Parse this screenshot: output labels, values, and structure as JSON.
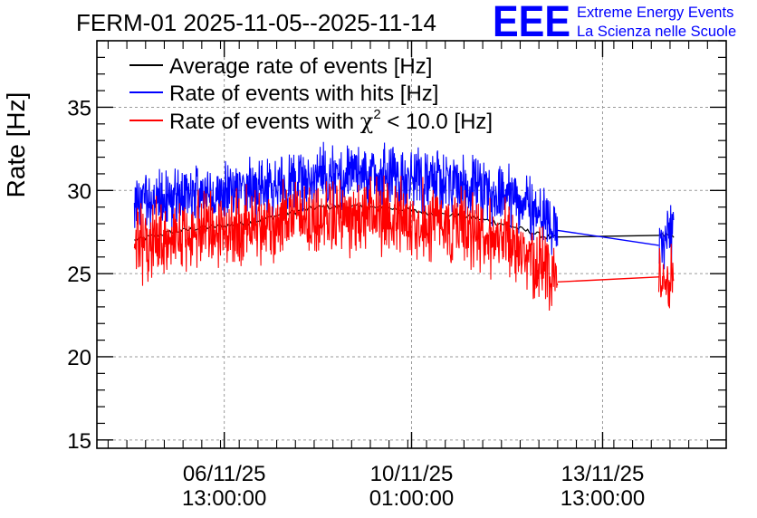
{
  "chart_data": {
    "type": "line",
    "title": "FERM-01 2025-11-05--2025-11-14",
    "ylabel": "Rate [Hz]",
    "xlabel": "",
    "ylim": [
      14.5,
      39
    ],
    "xlim": [
      0,
      16.8
    ],
    "grid": true,
    "legend_position": "top-left",
    "yticks": [
      15,
      20,
      25,
      30,
      35
    ],
    "xticks": [
      {
        "date": "06/11/25",
        "time": "13:00:00",
        "x": 3.4
      },
      {
        "date": "10/11/25",
        "time": "01:00:00",
        "x": 8.4
      },
      {
        "date": "13/11/25",
        "time": "13:00:00",
        "x": 13.5
      }
    ],
    "x_unit_note": "x in arbitrary time units along the axis",
    "series": [
      {
        "name": "Average rate of events [Hz]",
        "color": "#000000",
        "x": [
          1.0,
          2.0,
          3.0,
          4.0,
          5.0,
          6.0,
          7.0,
          8.0,
          9.0,
          10.0,
          11.0,
          12.0,
          12.3,
          15.0,
          15.4
        ],
        "values": [
          27.0,
          27.5,
          27.8,
          28.0,
          28.6,
          29.0,
          29.0,
          28.9,
          28.6,
          28.4,
          27.9,
          27.2,
          27.2,
          27.3,
          27.3
        ]
      },
      {
        "name": "Rate of events with hits [Hz]",
        "color": "#0000ff",
        "x": [
          1.0,
          2.0,
          3.0,
          4.0,
          5.0,
          6.0,
          7.0,
          8.0,
          9.0,
          10.0,
          11.0,
          12.0,
          12.3,
          15.0,
          15.4
        ],
        "values": [
          29.2,
          29.6,
          29.8,
          30.0,
          30.4,
          30.8,
          30.9,
          30.8,
          30.6,
          30.2,
          29.6,
          28.6,
          27.6,
          26.7,
          27.8
        ],
        "spread": 1.3
      },
      {
        "name": "Rate of events with χ² < 10.0 [Hz]",
        "color": "#ff0000",
        "x": [
          1.0,
          2.0,
          3.0,
          4.0,
          5.0,
          6.0,
          7.0,
          8.0,
          9.0,
          10.0,
          11.0,
          12.0,
          12.3,
          15.0,
          15.4
        ],
        "values": [
          26.8,
          27.2,
          27.5,
          27.8,
          28.3,
          28.5,
          28.5,
          28.4,
          28.1,
          27.7,
          27.0,
          25.4,
          24.5,
          24.8,
          25.0
        ],
        "spread": 1.6
      }
    ],
    "legend": [
      {
        "label": "Average rate of events [Hz]",
        "color": "#000000"
      },
      {
        "label": "Rate of events with hits [Hz]",
        "color": "#0000ff"
      },
      {
        "label_prefix": "Rate of events with ",
        "label_chi": "χ",
        "label_sup": "2",
        "label_suffix": " < 10.0 [Hz]",
        "color": "#ff0000"
      }
    ]
  },
  "logo": {
    "mark": "EEE",
    "line1": "Extreme Energy Events",
    "line2": "La Scienza nelle Scuole",
    "color": "#0000ff"
  }
}
